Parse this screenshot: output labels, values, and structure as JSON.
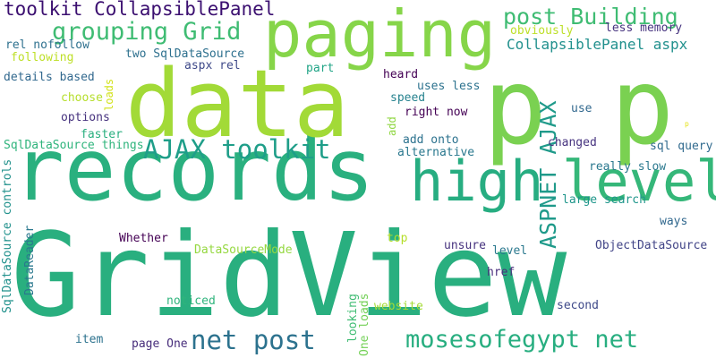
{
  "words": [
    {
      "text": "GridView",
      "color": "#29af7f"
    },
    {
      "text": "records",
      "color": "#2ab07f"
    },
    {
      "text": "data",
      "color": "#a2da37"
    },
    {
      "text": "p p",
      "color": "#7ad151"
    },
    {
      "text": "paging",
      "color": "#86d549"
    },
    {
      "text": "high",
      "color": "#27ad81"
    },
    {
      "text": "level",
      "color": "#35b779"
    },
    {
      "text": "toolkit CollapsiblePanel",
      "color": "#3b0f70"
    },
    {
      "text": "grouping Grid",
      "color": "#3fbc73"
    },
    {
      "text": "post Building",
      "color": "#3fbc73"
    },
    {
      "text": "CollapsiblePanel aspx",
      "color": "#21908d"
    },
    {
      "text": "AJAX toolkit",
      "color": "#1f9e89"
    },
    {
      "text": "ASPNET AJAX",
      "color": "#1f9a8a"
    },
    {
      "text": "net post",
      "color": "#2c728e"
    },
    {
      "text": "mosesofegypt net",
      "color": "#28ae80"
    },
    {
      "text": "SqlDataSource controls",
      "color": "#21918c"
    },
    {
      "text": "obviously",
      "color": "#bddf26"
    },
    {
      "text": "less memory",
      "color": "#46337f"
    },
    {
      "text": "rel nofollow",
      "color": "#2d708e"
    },
    {
      "text": "two SqlDataSource",
      "color": "#2d708e"
    },
    {
      "text": "aspx rel",
      "color": "#3e4989"
    },
    {
      "text": "following",
      "color": "#bddf26"
    },
    {
      "text": "loads",
      "color": "#d2e21b"
    },
    {
      "text": "details based",
      "color": "#31688e"
    },
    {
      "text": "part",
      "color": "#20a486"
    },
    {
      "text": "heard",
      "color": "#440154"
    },
    {
      "text": "uses less",
      "color": "#2c728e"
    },
    {
      "text": "use",
      "color": "#31688e"
    },
    {
      "text": "choose",
      "color": "#b5de2b"
    },
    {
      "text": "speed",
      "color": "#26828e"
    },
    {
      "text": "right now",
      "color": "#440154"
    },
    {
      "text": "options",
      "color": "#46327e"
    },
    {
      "text": "add",
      "color": "#90d743"
    },
    {
      "text": "faster",
      "color": "#29af7f"
    },
    {
      "text": "SqlDataSource things",
      "color": "#2fb47c"
    },
    {
      "text": "add onto",
      "color": "#2c728e"
    },
    {
      "text": "changed",
      "color": "#46337f"
    },
    {
      "text": "sql query",
      "color": "#306a8e"
    },
    {
      "text": "alternative",
      "color": "#2a788e"
    },
    {
      "text": "really slow",
      "color": "#2a788e"
    },
    {
      "text": "p",
      "color": "#e5e419"
    },
    {
      "text": "large search",
      "color": "#1f968b"
    },
    {
      "text": "ways",
      "color": "#31688e"
    },
    {
      "text": "Whether",
      "color": "#440154"
    },
    {
      "text": "top",
      "color": "#b5de2b"
    },
    {
      "text": "DataSourceMode",
      "color": "#95d840"
    },
    {
      "text": "unsure",
      "color": "#46327e"
    },
    {
      "text": "level",
      "color": "#2a788e"
    },
    {
      "text": "ObjectDataSource",
      "color": "#414487"
    },
    {
      "text": "DataReader",
      "color": "#2a788e"
    },
    {
      "text": "href",
      "color": "#472d7b"
    },
    {
      "text": "noticed",
      "color": "#2fb47c"
    },
    {
      "text": "website",
      "color": "#a5db36"
    },
    {
      "text": "looking",
      "color": "#3fbc73"
    },
    {
      "text": "second",
      "color": "#3e4989"
    },
    {
      "text": "item",
      "color": "#2c728e"
    },
    {
      "text": "page One",
      "color": "#472d7b"
    },
    {
      "text": "One loads",
      "color": "#73d056"
    }
  ]
}
